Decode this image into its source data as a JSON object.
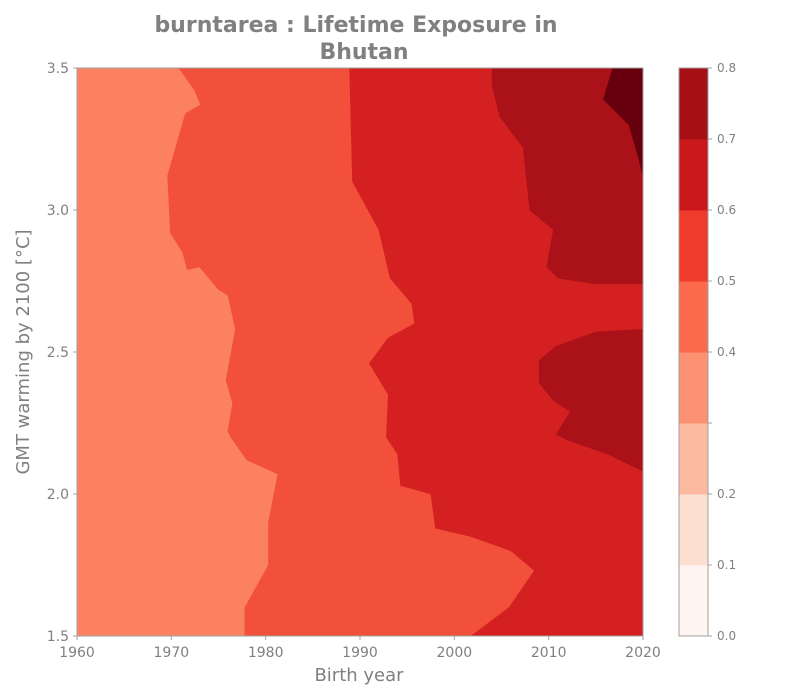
{
  "chart_data": {
    "type": "heatmap",
    "title_lines": [
      "burntarea : Lifetime Exposure in",
      "Bhutan"
    ],
    "xlabel": "Birth year",
    "ylabel": "GMT warming by 2100 [°C]",
    "xlim": [
      1960,
      2020
    ],
    "ylim": [
      1.5,
      3.5
    ],
    "xticks": [
      1960,
      1970,
      1980,
      1990,
      2000,
      2010,
      2020
    ],
    "yticks": [
      1.5,
      2.0,
      2.5,
      3.0,
      3.5
    ],
    "ytick_labels": [
      "1.5",
      "2.0",
      "2.5",
      "3.0",
      "3.5"
    ],
    "colorbar": {
      "levels": [
        0.0,
        0.1,
        0.2,
        0.3,
        0.4,
        0.5,
        0.6,
        0.7,
        0.8
      ],
      "tick_labels": [
        "0.0",
        "0.1",
        "0.2",
        "",
        "0.4",
        "0.5",
        "0.6",
        "0.7",
        "0.8"
      ],
      "colors": [
        "#fff5f0",
        "#fee0d2",
        "#fcbba1",
        "#fc9272",
        "#fb6a4a",
        "#ef3b2c",
        "#cb181d",
        "#a50f15",
        "#67000d"
      ]
    },
    "regions": [
      {
        "level_band": [
          0.3,
          0.4
        ],
        "color": "#fc8161",
        "points": [
          [
            1960,
            1.5
          ],
          [
            1960,
            3.5
          ],
          [
            1970.8,
            3.5
          ],
          [
            1972.5,
            3.42
          ],
          [
            1973.1,
            3.37
          ],
          [
            1971.5,
            3.34
          ],
          [
            1969.6,
            3.12
          ],
          [
            1969.9,
            2.92
          ],
          [
            1971.2,
            2.85
          ],
          [
            1971.7,
            2.79
          ],
          [
            1973,
            2.8
          ],
          [
            1975,
            2.72
          ],
          [
            1976,
            2.7
          ],
          [
            1976.8,
            2.58
          ],
          [
            1975.8,
            2.4
          ],
          [
            1976.5,
            2.32
          ],
          [
            1976,
            2.22
          ],
          [
            1976.3,
            2.2
          ],
          [
            1978,
            2.12
          ],
          [
            1981.3,
            2.07
          ],
          [
            1980.3,
            1.9
          ],
          [
            1980.3,
            1.75
          ],
          [
            1977.8,
            1.6
          ],
          [
            1977.8,
            1.5
          ]
        ]
      },
      {
        "level_band": [
          0.4,
          0.5
        ],
        "color": "#f2503a",
        "points": [
          [
            1970.8,
            3.5
          ],
          [
            1988.9,
            3.5
          ],
          [
            1989.2,
            3.1
          ],
          [
            1992,
            2.93
          ],
          [
            1993.2,
            2.76
          ],
          [
            1995.5,
            2.67
          ],
          [
            1995.8,
            2.6
          ],
          [
            1993,
            2.55
          ],
          [
            1991,
            2.46
          ],
          [
            1993,
            2.35
          ],
          [
            1992.8,
            2.2
          ],
          [
            1994,
            2.14
          ],
          [
            1994.3,
            2.03
          ],
          [
            1997.5,
            2.0
          ],
          [
            1998,
            1.88
          ],
          [
            2001.8,
            1.85
          ],
          [
            2006,
            1.8
          ],
          [
            2008.5,
            1.73
          ],
          [
            2005.8,
            1.6
          ],
          [
            2001.8,
            1.5
          ],
          [
            1977.8,
            1.5
          ],
          [
            1977.8,
            1.6
          ],
          [
            1980.3,
            1.75
          ],
          [
            1980.3,
            1.9
          ],
          [
            1981.3,
            2.07
          ],
          [
            1978,
            2.12
          ],
          [
            1976.3,
            2.2
          ],
          [
            1976,
            2.22
          ],
          [
            1976.5,
            2.32
          ],
          [
            1975.8,
            2.4
          ],
          [
            1976.8,
            2.58
          ],
          [
            1976,
            2.7
          ],
          [
            1975,
            2.72
          ],
          [
            1973,
            2.8
          ],
          [
            1971.7,
            2.79
          ],
          [
            1971.2,
            2.85
          ],
          [
            1969.9,
            2.92
          ],
          [
            1969.6,
            3.12
          ],
          [
            1971.5,
            3.34
          ],
          [
            1973.1,
            3.37
          ],
          [
            1972.5,
            3.42
          ]
        ]
      },
      {
        "level_band": [
          0.5,
          0.6
        ],
        "color": "#d42020",
        "points": [
          [
            1988.9,
            3.5
          ],
          [
            2004,
            3.5
          ],
          [
            2004,
            3.44
          ],
          [
            2004.8,
            3.33
          ],
          [
            2007.3,
            3.22
          ],
          [
            2008,
            3.0
          ],
          [
            2010.5,
            2.93
          ],
          [
            2009.8,
            2.8
          ],
          [
            2011,
            2.76
          ],
          [
            2015,
            2.74
          ],
          [
            2020,
            2.74
          ],
          [
            2020,
            2.58
          ],
          [
            2015,
            2.57
          ],
          [
            2010.8,
            2.52
          ],
          [
            2009,
            2.47
          ],
          [
            2009,
            2.39
          ],
          [
            2010.5,
            2.33
          ],
          [
            2012.3,
            2.29
          ],
          [
            2010.8,
            2.21
          ],
          [
            2012,
            2.19
          ],
          [
            2016.3,
            2.14
          ],
          [
            2020,
            2.08
          ],
          [
            2020,
            1.5
          ],
          [
            2001.8,
            1.5
          ],
          [
            2005.8,
            1.6
          ],
          [
            2008.5,
            1.73
          ],
          [
            2006,
            1.8
          ],
          [
            2001.8,
            1.85
          ],
          [
            1998,
            1.88
          ],
          [
            1997.5,
            2.0
          ],
          [
            1994.3,
            2.03
          ],
          [
            1994,
            2.14
          ],
          [
            1992.8,
            2.2
          ],
          [
            1993,
            2.35
          ],
          [
            1991,
            2.46
          ],
          [
            1993,
            2.55
          ],
          [
            1995.8,
            2.6
          ],
          [
            1995.5,
            2.67
          ],
          [
            1993.2,
            2.76
          ],
          [
            1992,
            2.93
          ],
          [
            1989.2,
            3.1
          ]
        ]
      },
      {
        "level_band": [
          0.6,
          0.7
        ],
        "color": "#ab1118",
        "points": [
          [
            2004,
            3.5
          ],
          [
            2016.8,
            3.5
          ],
          [
            2015.8,
            3.39
          ],
          [
            2017,
            3.35
          ],
          [
            2018.5,
            3.3
          ],
          [
            2019.4,
            3.2
          ],
          [
            2020,
            3.12
          ],
          [
            2020,
            2.74
          ],
          [
            2015,
            2.74
          ],
          [
            2011,
            2.76
          ],
          [
            2009.8,
            2.8
          ],
          [
            2010.5,
            2.93
          ],
          [
            2008,
            3.0
          ],
          [
            2007.3,
            3.22
          ],
          [
            2004.8,
            3.33
          ],
          [
            2004,
            3.44
          ]
        ]
      },
      {
        "level_band": [
          0.6,
          0.7
        ],
        "color": "#ab1118",
        "points": [
          [
            2010.8,
            2.52
          ],
          [
            2015,
            2.57
          ],
          [
            2020,
            2.58
          ],
          [
            2020,
            2.08
          ],
          [
            2016.3,
            2.14
          ],
          [
            2012,
            2.19
          ],
          [
            2010.8,
            2.21
          ],
          [
            2012.3,
            2.29
          ],
          [
            2010.5,
            2.33
          ],
          [
            2009,
            2.39
          ],
          [
            2009,
            2.47
          ]
        ]
      },
      {
        "level_band": [
          0.7,
          0.8
        ],
        "color": "#67000d",
        "points": [
          [
            2016.8,
            3.5
          ],
          [
            2020,
            3.5
          ],
          [
            2020,
            3.12
          ],
          [
            2019.4,
            3.2
          ],
          [
            2018.5,
            3.3
          ],
          [
            2017,
            3.35
          ],
          [
            2015.8,
            3.39
          ]
        ]
      }
    ]
  }
}
